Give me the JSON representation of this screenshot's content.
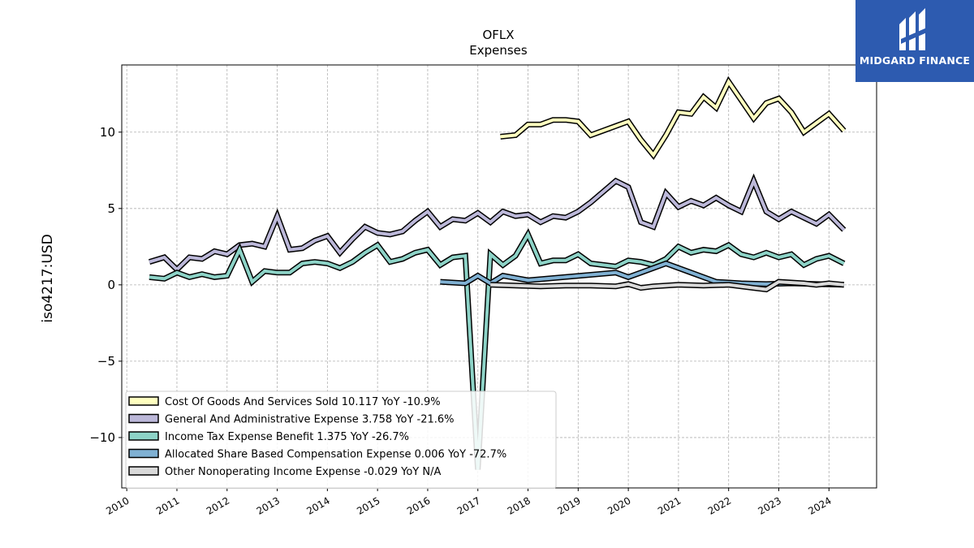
{
  "chart_data": {
    "type": "line",
    "title": "OFLX",
    "subtitle": "Expenses",
    "ylabel": "iso4217:USD",
    "xlim": [
      2009.9,
      2024.95
    ],
    "ylim": [
      -13.3,
      14.4
    ],
    "yticks": [
      -10,
      -5,
      0,
      5,
      10
    ],
    "ytick_labels": [
      "−10",
      "−5",
      "0",
      "5",
      "10"
    ],
    "xticks": [
      2010,
      2011,
      2012,
      2013,
      2014,
      2015,
      2016,
      2017,
      2018,
      2019,
      2020,
      2021,
      2022,
      2023,
      2024
    ],
    "grid": true,
    "legend_position": "lower-left",
    "series": [
      {
        "name": "Cost Of Goods And Services Sold",
        "legend_label": "Cost Of Goods And Services Sold  10.117 YoY -10.9%",
        "color": "#ffffbf",
        "x": [
          2017.45,
          2017.75,
          2018.0,
          2018.25,
          2018.5,
          2018.75,
          2019.0,
          2019.25,
          2019.5,
          2019.75,
          2020.0,
          2020.25,
          2020.5,
          2020.75,
          2021.0,
          2021.25,
          2021.5,
          2021.75,
          2022.0,
          2022.25,
          2022.5,
          2022.75,
          2023.0,
          2023.25,
          2023.5,
          2023.75,
          2024.0,
          2024.3
        ],
        "y": [
          9.7,
          9.8,
          10.5,
          10.5,
          10.8,
          10.8,
          10.7,
          9.8,
          10.1,
          10.4,
          10.7,
          9.5,
          8.5,
          9.8,
          11.3,
          11.2,
          12.3,
          11.6,
          13.3,
          12.1,
          10.9,
          11.9,
          12.2,
          11.3,
          10.0,
          10.6,
          11.2,
          10.1
        ]
      },
      {
        "name": "General And Administrative Expense",
        "legend_label": "General And Administrative Expense  3.758 YoY -21.6%",
        "color": "#bcb8d9",
        "x": [
          2010.45,
          2010.75,
          2011.0,
          2011.25,
          2011.5,
          2011.75,
          2012.0,
          2012.25,
          2012.5,
          2012.75,
          2013.0,
          2013.25,
          2013.5,
          2013.75,
          2014.0,
          2014.25,
          2014.5,
          2014.75,
          2015.0,
          2015.25,
          2015.5,
          2015.75,
          2016.0,
          2016.25,
          2016.5,
          2016.75,
          2017.0,
          2017.25,
          2017.5,
          2017.75,
          2018.0,
          2018.25,
          2018.5,
          2018.75,
          2019.0,
          2019.25,
          2019.5,
          2019.75,
          2020.0,
          2020.25,
          2020.5,
          2020.75,
          2021.0,
          2021.25,
          2021.5,
          2021.75,
          2022.0,
          2022.25,
          2022.5,
          2022.75,
          2023.0,
          2023.25,
          2023.5,
          2023.75,
          2024.0,
          2024.3
        ],
        "y": [
          1.5,
          1.8,
          1.0,
          1.8,
          1.7,
          2.2,
          2.0,
          2.6,
          2.7,
          2.5,
          4.5,
          2.3,
          2.4,
          2.9,
          3.2,
          2.1,
          3.0,
          3.8,
          3.4,
          3.3,
          3.5,
          4.2,
          4.8,
          3.8,
          4.3,
          4.2,
          4.7,
          4.1,
          4.8,
          4.5,
          4.6,
          4.1,
          4.5,
          4.4,
          4.8,
          5.4,
          6.1,
          6.8,
          6.4,
          4.1,
          3.8,
          6.0,
          5.1,
          5.5,
          5.2,
          5.7,
          5.2,
          4.8,
          6.8,
          4.8,
          4.3,
          4.8,
          4.4,
          4.0,
          4.6,
          3.6
        ]
      },
      {
        "name": "Income Tax Expense Benefit",
        "legend_label": "Income Tax Expense Benefit  1.375 YoY -26.7%",
        "color": "#8dd3c7",
        "x": [
          2010.45,
          2010.75,
          2011.0,
          2011.25,
          2011.5,
          2011.75,
          2012.0,
          2012.25,
          2012.5,
          2012.75,
          2013.0,
          2013.25,
          2013.5,
          2013.75,
          2014.0,
          2014.25,
          2014.5,
          2014.75,
          2015.0,
          2015.25,
          2015.5,
          2015.75,
          2016.0,
          2016.25,
          2016.5,
          2016.75,
          2017.0,
          2017.25,
          2017.5,
          2017.75,
          2018.0,
          2018.25,
          2018.5,
          2018.75,
          2019.0,
          2019.25,
          2019.5,
          2019.75,
          2020.0,
          2020.25,
          2020.5,
          2020.75,
          2021.0,
          2021.25,
          2021.5,
          2021.75,
          2022.0,
          2022.25,
          2022.5,
          2022.75,
          2023.0,
          2023.25,
          2023.5,
          2023.75,
          2024.0,
          2024.3
        ],
        "y": [
          0.5,
          0.4,
          0.8,
          0.5,
          0.7,
          0.5,
          0.6,
          2.3,
          0.2,
          0.9,
          0.8,
          0.8,
          1.4,
          1.5,
          1.4,
          1.1,
          1.5,
          2.1,
          2.6,
          1.5,
          1.7,
          2.1,
          2.3,
          1.3,
          1.8,
          1.9,
          -12.1,
          2.0,
          1.3,
          1.9,
          3.3,
          1.4,
          1.6,
          1.6,
          2.0,
          1.4,
          1.3,
          1.2,
          1.6,
          1.5,
          1.3,
          1.7,
          2.5,
          2.1,
          2.3,
          2.2,
          2.6,
          2.0,
          1.8,
          2.1,
          1.8,
          2.0,
          1.3,
          1.7,
          1.9,
          1.4
        ]
      },
      {
        "name": "Allocated Share Based Compensation Expense",
        "legend_label": "Allocated Share Based Compensation Expense  0.006 YoY -72.7%",
        "color": "#80b1d3",
        "x": [
          2016.25,
          2016.75,
          2017.0,
          2017.25,
          2017.5,
          2018.0,
          2019.75,
          2020.0,
          2020.25,
          2020.75,
          2021.25,
          2021.75,
          2022.25,
          2022.75,
          2023.25,
          2023.75,
          2024.3
        ],
        "y": [
          0.2,
          0.1,
          0.6,
          0.1,
          0.6,
          0.3,
          0.8,
          0.5,
          0.8,
          1.4,
          0.8,
          0.2,
          0.1,
          0.05,
          0.1,
          0.05,
          0.0
        ]
      },
      {
        "name": "Other Nonoperating Income Expense",
        "legend_label": "Other Nonoperating Income Expense  -0.029 YoY N/A",
        "color": "#d9d9d9",
        "x": [
          2017.25,
          2017.75,
          2018.25,
          2018.75,
          2019.25,
          2019.75,
          2020.0,
          2020.25,
          2020.5,
          2021.0,
          2021.5,
          2022.0,
          2022.5,
          2022.75,
          2023.0,
          2023.5,
          2023.75,
          2024.0,
          2024.3
        ],
        "y": [
          0.0,
          -0.05,
          -0.1,
          -0.05,
          -0.05,
          -0.1,
          0.05,
          -0.2,
          -0.1,
          0.0,
          -0.05,
          0.0,
          -0.2,
          -0.3,
          0.2,
          0.1,
          0.0,
          0.1,
          0.0
        ]
      }
    ]
  },
  "logo": {
    "text": "MIDGARD FINANCE",
    "bg_color": "#2d5bb0"
  }
}
